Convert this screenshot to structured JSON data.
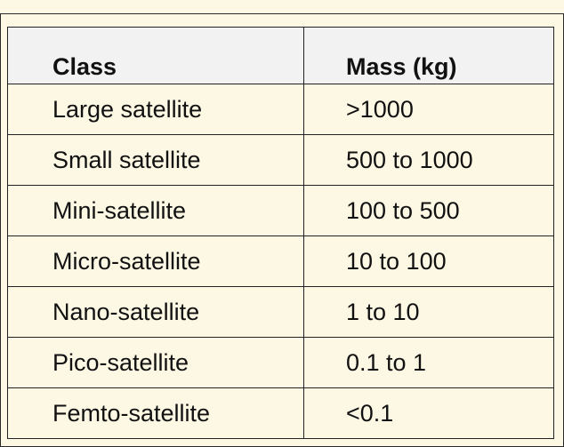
{
  "table": {
    "headers": [
      "Class",
      "Mass (kg)"
    ],
    "rows": [
      [
        "Large satellite",
        ">1000"
      ],
      [
        "Small satellite",
        "500 to 1000"
      ],
      [
        "Mini-satellite",
        "100 to 500"
      ],
      [
        "Micro-satellite",
        "10 to 100"
      ],
      [
        "Nano-satellite",
        "1 to 10"
      ],
      [
        "Pico-satellite",
        "0.1 to 1"
      ],
      [
        "Femto-satellite",
        "<0.1"
      ]
    ]
  },
  "colors": {
    "page_background": "#fdf8e4",
    "header_background": "#f2f2f2",
    "border": "#222222",
    "text": "#111111"
  }
}
